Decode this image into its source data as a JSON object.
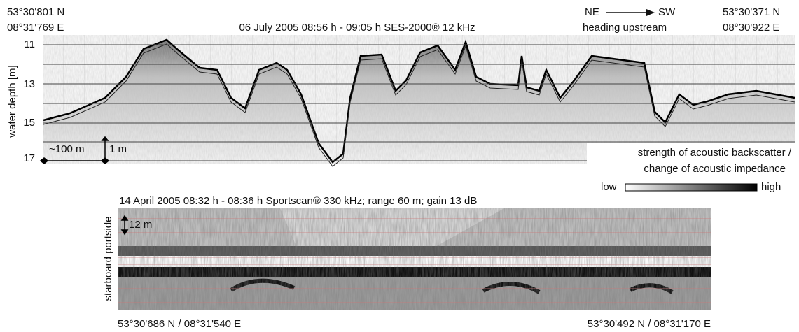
{
  "header": {
    "start_lat": "53°30'801 N",
    "start_lon": "08°31'769 E",
    "title": "06 July 2005 08:56 h - 09:05 h SES-2000® 12 kHz",
    "direction_from": "NE",
    "direction_to": "SW",
    "direction_note": "heading upstream",
    "end_lat": "53°30'371 N",
    "end_lon": "08°30'922 E"
  },
  "echogram": {
    "y_label": "water depth [m]",
    "ticks": [
      "11",
      "13",
      "15",
      "17"
    ],
    "scale_horizontal": "~100 m",
    "scale_vertical": "1 m"
  },
  "legend": {
    "title_line1": "strength of acoustic backscatter /",
    "title_line2": "change of acoustic impedance",
    "low": "low",
    "high": "high"
  },
  "sidescan": {
    "title": "14 April 2005 08:32 h - 08:36 h Sportscan® 330 kHz; range 60 m; gain 13 dB",
    "side_label": "starboard portside",
    "scale": "12 m",
    "start_position": "53°30'686 N / 08°31'540 E",
    "end_position": "53°30'492 N / 08°31'170 E"
  }
}
